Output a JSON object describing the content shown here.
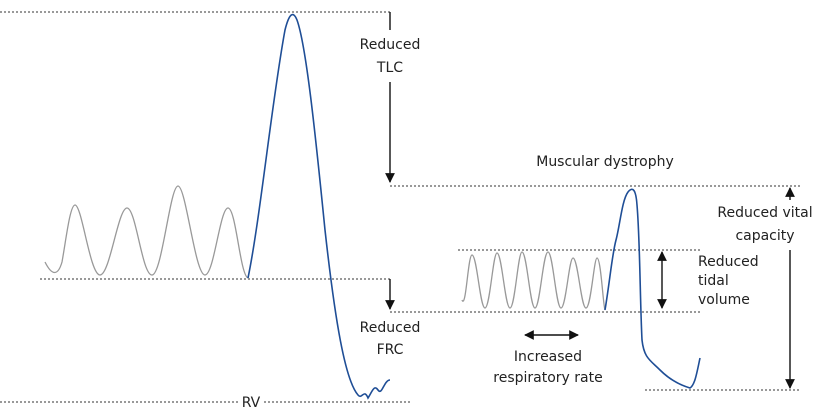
{
  "labels": {
    "tlc": [
      "Reduced",
      "TLC"
    ],
    "condition": "Muscular dystrophy",
    "vital_capacity": [
      "Reduced vital",
      "capacity"
    ],
    "tidal_volume": [
      "Reduced",
      "tidal",
      "volume"
    ],
    "frc": [
      "Reduced",
      "FRC"
    ],
    "respiratory_rate": [
      "Increased",
      "respiratory rate"
    ],
    "rv": "RV"
  }
}
